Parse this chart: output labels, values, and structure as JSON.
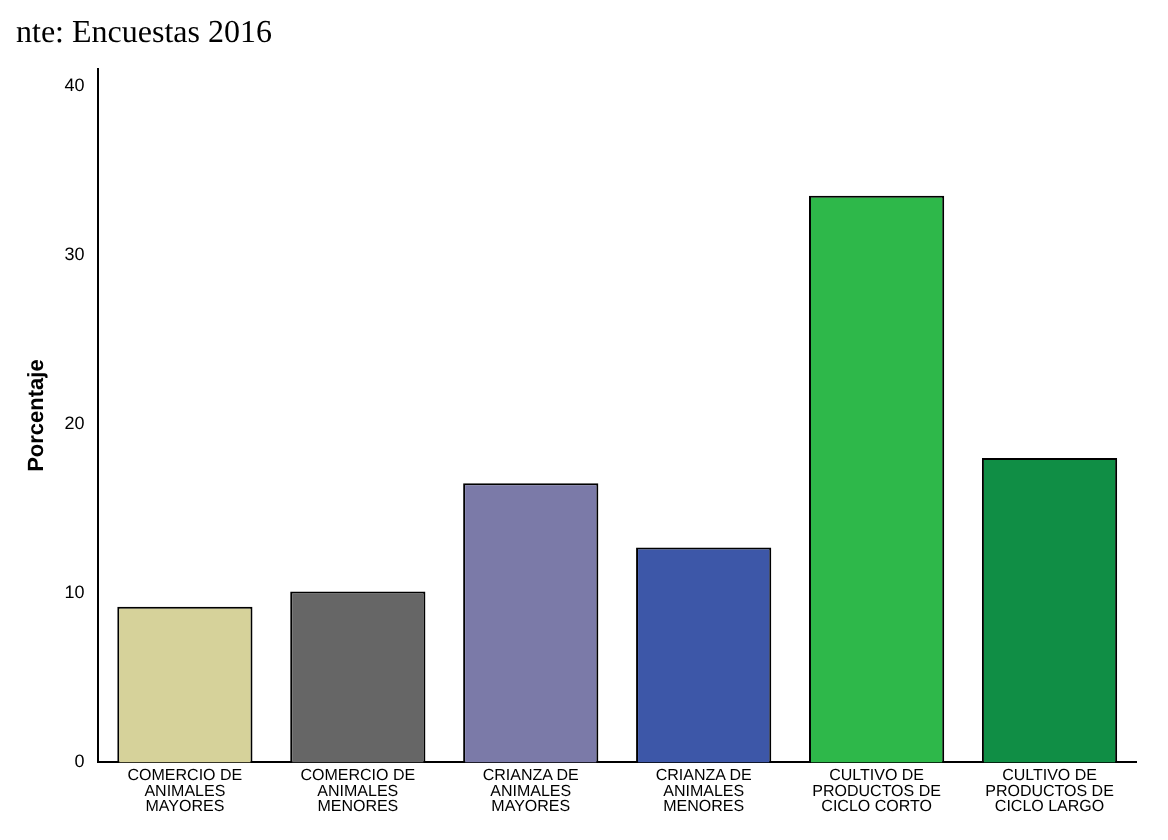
{
  "chart_data": {
    "type": "bar",
    "ylabel": "Porcentaje",
    "annotations": [
      "nte: Encuestas 2016"
    ],
    "categories": [
      "COMERCIO DE ANIMALES MAYORES",
      "COMERCIO DE ANIMALES MENORES",
      "CRIANZA DE ANIMALES MAYORES",
      "CRIANZA DE ANIMALES MENORES",
      "CULTIVO DE PRODUCTOS DE CICLO CORTO",
      "CULTIVO DE PRODUCTOS DE CICLO LARGO"
    ],
    "values": [
      9.2,
      10.1,
      16.5,
      12.7,
      33.5,
      18.0
    ],
    "colors": [
      "#d6d29a",
      "#666666",
      "#7b7aa8",
      "#3d57a8",
      "#2eb84a",
      "#108e45"
    ],
    "ylim": [
      0,
      41
    ],
    "yticks": [
      0,
      10,
      20,
      30,
      40
    ],
    "grid": false,
    "legend": false
  }
}
